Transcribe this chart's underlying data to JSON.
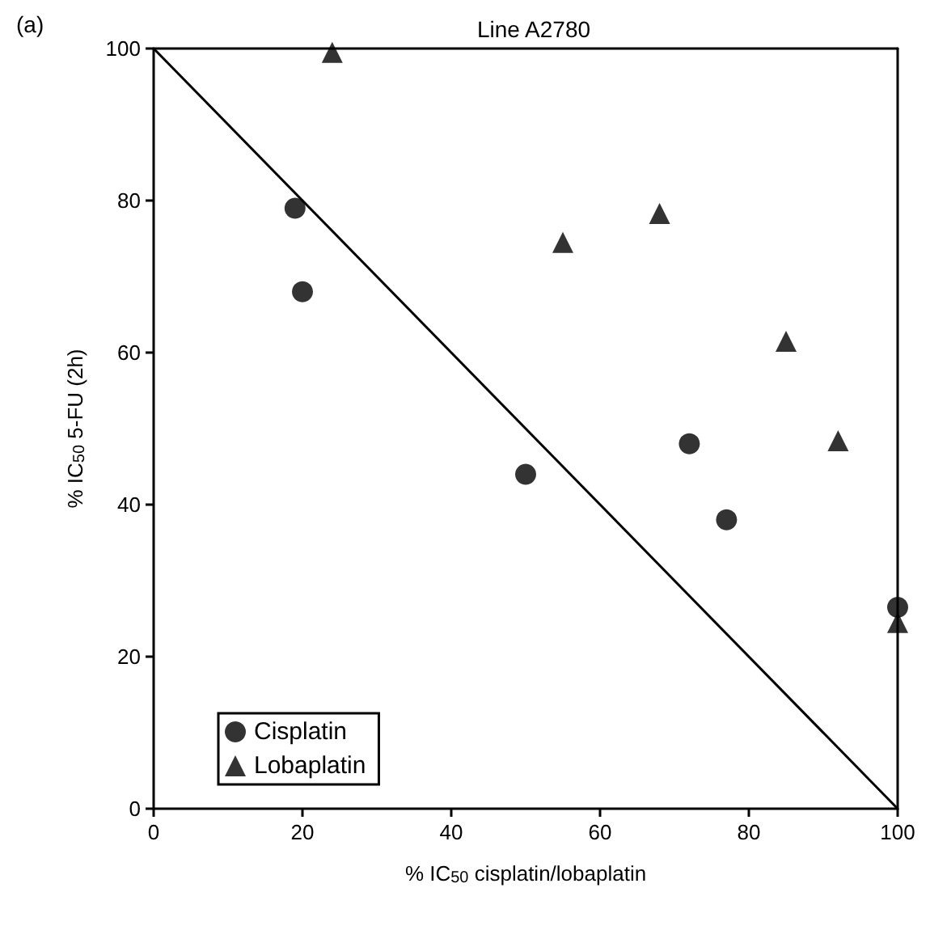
{
  "chart_data": {
    "type": "scatter",
    "title": "Line A2780",
    "annotations": [
      "(a)"
    ],
    "xlabel": "% IC$_{50}$ cisplatin/lobaplatin",
    "ylabel": "% IC$_{50}$ 5-FU (2h)",
    "xlim": [
      0,
      100
    ],
    "xticks": [
      0,
      20,
      40,
      60,
      80,
      100
    ],
    "ylim": [
      0,
      100
    ],
    "yticks": [
      0,
      20,
      40,
      60,
      80,
      100
    ],
    "grid": false,
    "legend": "bottom left",
    "series": [
      {
        "name": "Cisplatin",
        "color": "#000000",
        "marker": "circle",
        "x": [
          19,
          20,
          50,
          72,
          77,
          100
        ],
        "values": [
          79,
          68,
          44,
          48,
          38,
          26.5
        ]
      },
      {
        "name": "Lobaplatin",
        "color": "#000000",
        "marker": "triangle",
        "x": [
          24,
          55,
          68,
          85,
          92,
          100
        ],
        "values": [
          99.5,
          74.5,
          78.3,
          61.5,
          48.4,
          24.5
        ]
      },
      {
        "type": "line",
        "color": "#000000",
        "marker": "none",
        "x": [
          0,
          100
        ],
        "values": [
          100,
          0
        ]
      }
    ]
  }
}
